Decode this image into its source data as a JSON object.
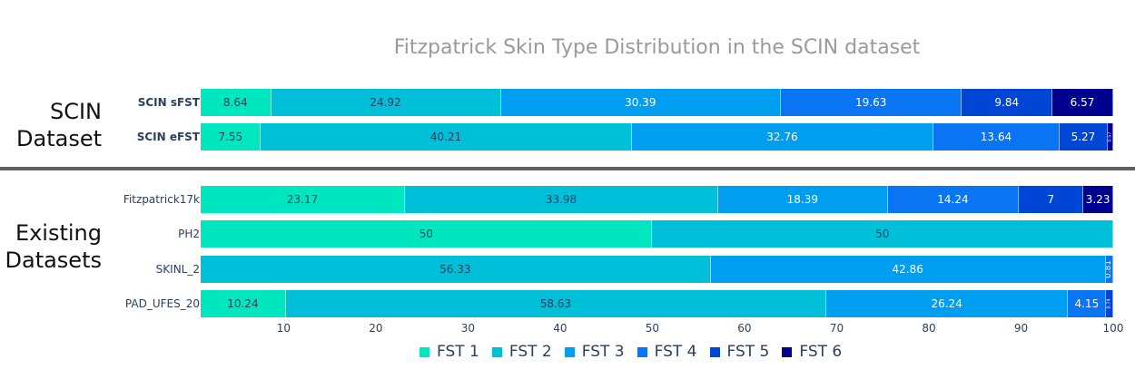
{
  "chart_data": {
    "type": "bar",
    "orientation": "horizontal",
    "stacked": true,
    "title": "Fitzpatrick Skin Type Distribution in the SCIN dataset",
    "xlim": [
      1,
      100
    ],
    "x_ticks": [
      "10",
      "20",
      "30",
      "40",
      "50",
      "60",
      "70",
      "80",
      "90",
      "100"
    ],
    "grid": false,
    "legend_position": "bottom",
    "group_labels": [
      "SCIN\nDataset",
      "Existing\nDatasets"
    ],
    "categories": [
      "SCIN sFST",
      "SCIN eFST",
      "Fitzpatrick17k",
      "PH2",
      "SKINL_2",
      "PAD_UFES_20"
    ],
    "series": [
      {
        "name": "FST 1",
        "color": "#00e6bf",
        "values": [
          8.64,
          7.55,
          23.17,
          50.0,
          0,
          10.24
        ]
      },
      {
        "name": "FST 2",
        "color": "#00bfd8",
        "values": [
          24.92,
          40.21,
          33.98,
          50.0,
          56.33,
          58.63
        ]
      },
      {
        "name": "FST 3",
        "color": "#009ef0",
        "values": [
          30.39,
          32.76,
          18.39,
          0,
          42.86,
          26.24
        ]
      },
      {
        "name": "FST 4",
        "color": "#0a75f2",
        "values": [
          19.63,
          13.64,
          14.24,
          0,
          0.81,
          4.15
        ]
      },
      {
        "name": "FST 5",
        "color": "#0046d6",
        "values": [
          9.84,
          5.27,
          7.0,
          0,
          0,
          0.74
        ]
      },
      {
        "name": "FST 6",
        "color": "#00008f",
        "values": [
          6.57,
          0.57,
          3.23,
          0,
          0,
          0
        ]
      }
    ]
  }
}
